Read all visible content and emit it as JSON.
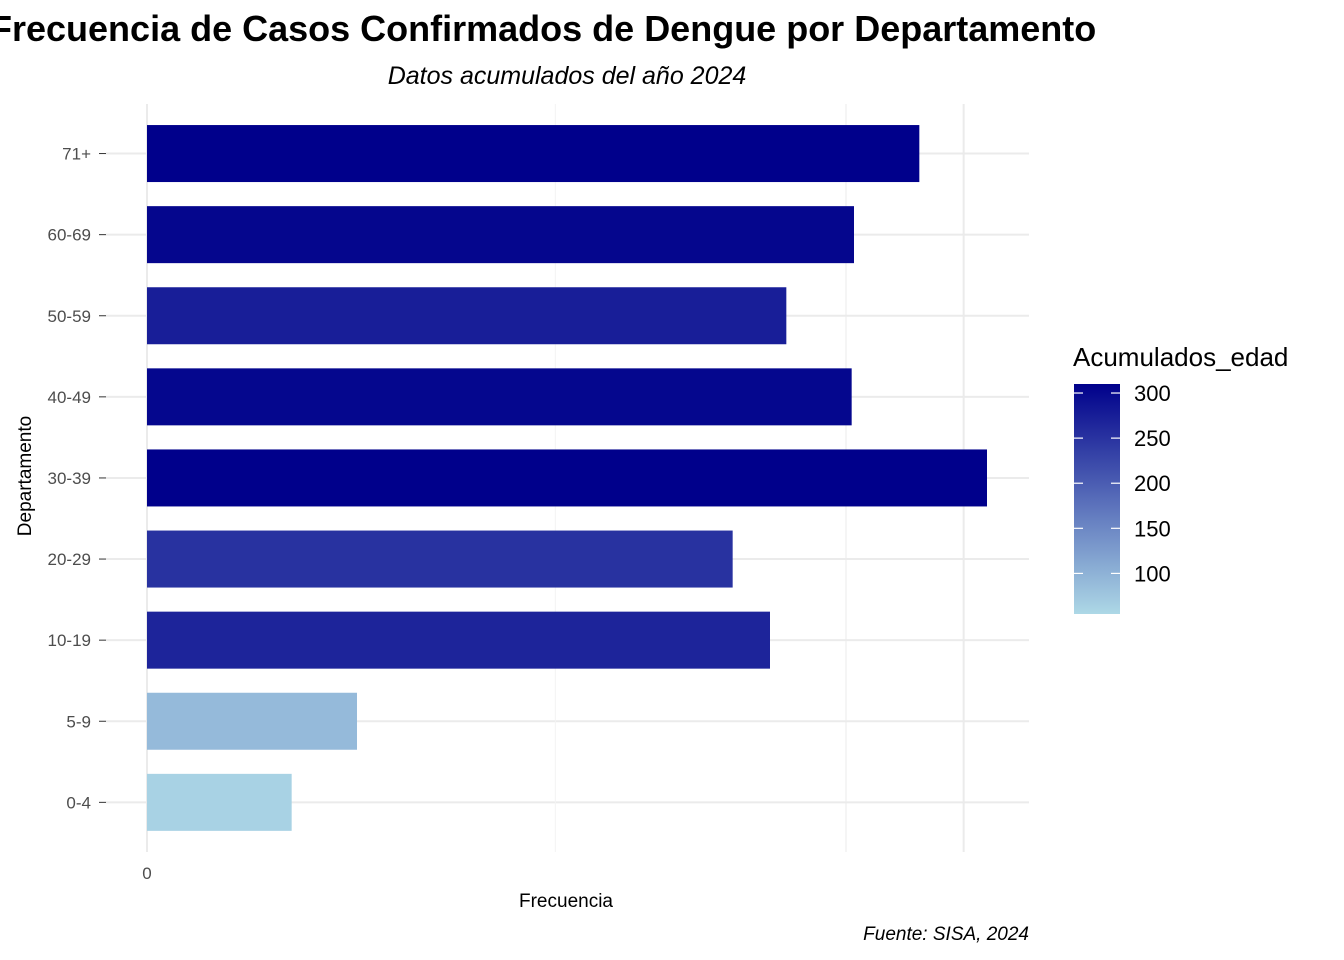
{
  "chart_data": {
    "type": "bar",
    "orientation": "horizontal",
    "title": "Frecuencia de Casos Confirmados de Dengue por Departamento",
    "subtitle": "Datos acumulados del año 2024",
    "xlabel": "Frecuencia",
    "ylabel": "Departamento",
    "caption": "Fuente: SISA, 2024",
    "categories": [
      "0-4",
      "5-9",
      "10-19",
      "20-29",
      "30-39",
      "40-49",
      "50-59",
      "60-69",
      "71+"
    ],
    "values": [
      62,
      90,
      267,
      251,
      360,
      302,
      274,
      303,
      331
    ],
    "x_tick_labels": [
      "0"
    ],
    "xlim": [
      0,
      378
    ],
    "grid": true,
    "fill_scale": {
      "name": "Acumulados_edad",
      "low_color": "#ADD8E6",
      "high_color": "#00008B",
      "breaks": [
        100,
        150,
        200,
        250,
        300
      ],
      "range": [
        55,
        310
      ]
    },
    "legend_position": "right"
  }
}
